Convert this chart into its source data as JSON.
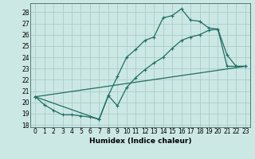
{
  "xlabel": "Humidex (Indice chaleur)",
  "bg_color": "#cce8e4",
  "grid_color": "#aacccc",
  "line_color": "#1e6e64",
  "xlim": [
    -0.5,
    23.5
  ],
  "ylim": [
    17.8,
    28.8
  ],
  "yticks": [
    18,
    19,
    20,
    21,
    22,
    23,
    24,
    25,
    26,
    27,
    28
  ],
  "xticks": [
    0,
    1,
    2,
    3,
    4,
    5,
    6,
    7,
    8,
    9,
    10,
    11,
    12,
    13,
    14,
    15,
    16,
    17,
    18,
    19,
    20,
    21,
    22,
    23
  ],
  "xtick_labels": [
    "0",
    "1",
    "2",
    "3",
    "4",
    "5",
    "6",
    "7",
    "8",
    "9",
    "10",
    "11",
    "12",
    "13",
    "14",
    "15",
    "16",
    "17",
    "18",
    "19",
    "20",
    "21",
    "22",
    "23"
  ],
  "line1_x": [
    0,
    1,
    2,
    3,
    4,
    5,
    6,
    7,
    8,
    9,
    10,
    11,
    12,
    13,
    14,
    15,
    16,
    17,
    18,
    19,
    20,
    21,
    22,
    23
  ],
  "line1_y": [
    20.5,
    19.8,
    19.3,
    18.9,
    18.9,
    18.8,
    18.7,
    18.5,
    20.6,
    22.3,
    24.0,
    24.7,
    25.5,
    25.8,
    27.5,
    27.7,
    28.3,
    27.3,
    27.2,
    26.6,
    26.5,
    24.2,
    23.2,
    23.2
  ],
  "line2_x": [
    0,
    7,
    8,
    9,
    10,
    11,
    12,
    13,
    14,
    15,
    16,
    17,
    18,
    19,
    20,
    21,
    22,
    23
  ],
  "line2_y": [
    20.5,
    18.5,
    20.6,
    19.7,
    21.3,
    22.2,
    22.9,
    23.5,
    24.0,
    24.8,
    25.5,
    25.8,
    26.0,
    26.4,
    26.5,
    23.2,
    23.2,
    23.2
  ],
  "line3_x": [
    0,
    23
  ],
  "line3_y": [
    20.5,
    23.2
  ],
  "xlabel_fontsize": 6.5,
  "tick_fontsize": 5.5
}
